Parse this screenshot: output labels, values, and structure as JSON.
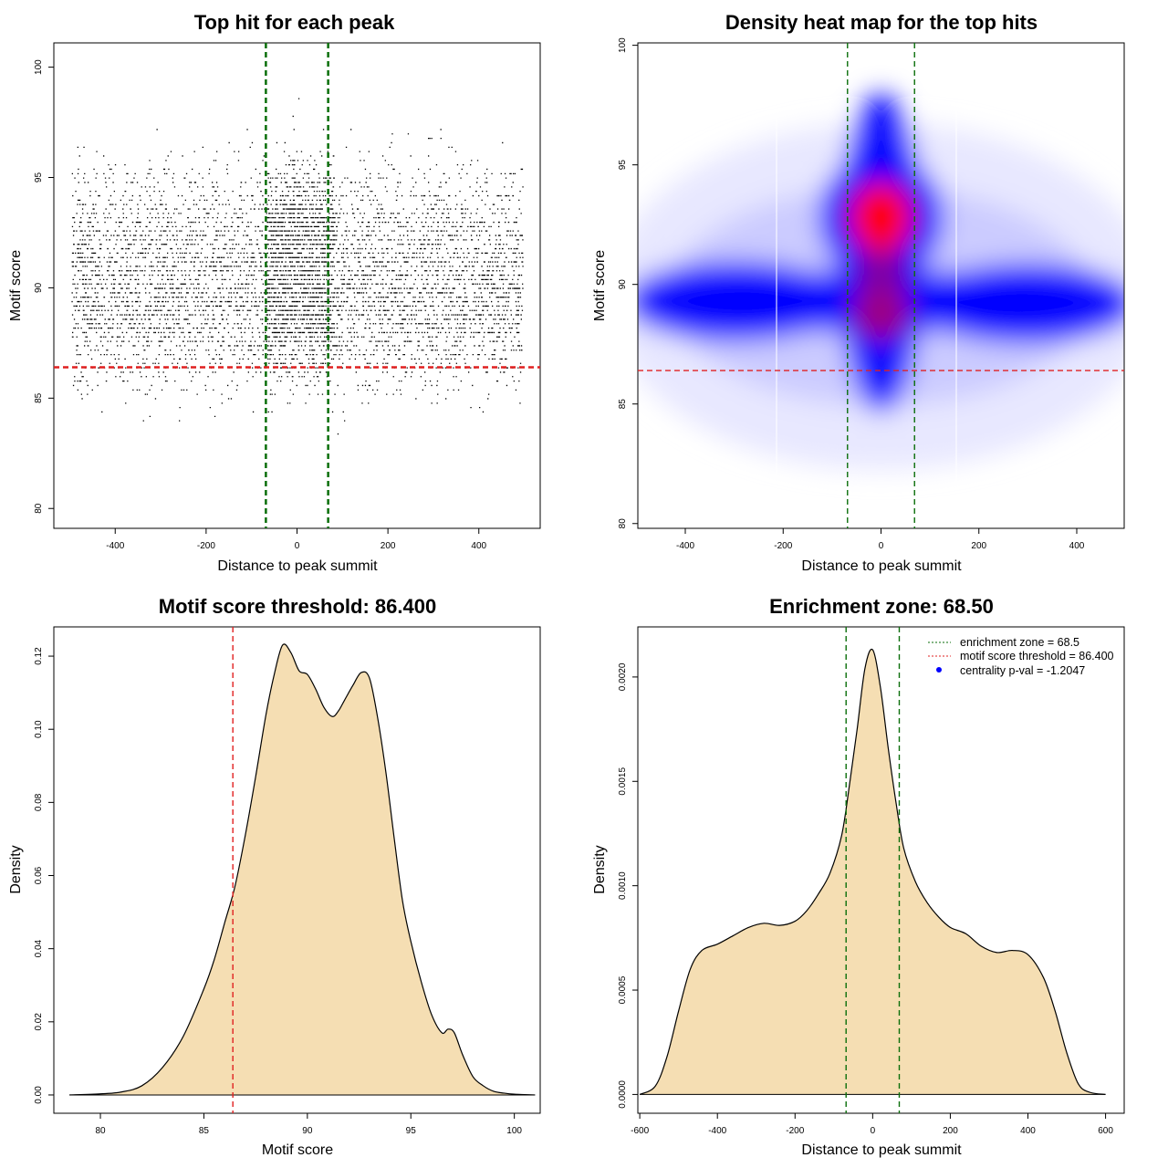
{
  "chart_data": [
    {
      "type": "scatter",
      "title": "Top hit for each peak",
      "xlabel": "Distance to peak summit",
      "ylabel": "Motif score",
      "xlim": [
        -535,
        535
      ],
      "ylim": [
        79.1,
        101.1
      ],
      "xticks": [
        "-400",
        "-200",
        "0",
        "200",
        "400"
      ],
      "yticks": [
        "80",
        "85",
        "90",
        "95",
        "100"
      ],
      "hlines": [
        {
          "y": 86.4,
          "color": "#e02020",
          "style": "dashed"
        }
      ],
      "vlines": [
        {
          "x": -68.5,
          "color": "#0a6e0a",
          "style": "dashed"
        },
        {
          "x": 68.5,
          "color": "#0a6e0a",
          "style": "dashed"
        }
      ],
      "point_cloud": {
        "n_points": 6500,
        "x_range": [
          -496,
          496
        ],
        "y_range": [
          79.7,
          100
        ],
        "central_band": [
          -68.5,
          68.5
        ],
        "score_modes": [
          88.8,
          92.8
        ],
        "point_color": "#000000"
      },
      "grid": false
    },
    {
      "type": "heatmap",
      "title": "Density heat map for the top hits",
      "xlabel": "Distance to peak summit",
      "ylabel": "Motif score",
      "xlim": [
        -497,
        497
      ],
      "ylim": [
        79.8,
        100.1
      ],
      "xticks": [
        "-400",
        "-200",
        "0",
        "200",
        "400"
      ],
      "yticks": [
        "80",
        "85",
        "90",
        "95",
        "100"
      ],
      "colors": {
        "low": "#ffffff",
        "mid": "#0000ff",
        "high": "#ff0000"
      },
      "hotspots": [
        {
          "x": 0,
          "y": 92.8,
          "intensity": "highest"
        },
        {
          "x": 0,
          "y": 88.8,
          "intensity": "high"
        },
        {
          "x": -300,
          "y": 89.2,
          "intensity": "medium"
        },
        {
          "x": 300,
          "y": 89.2,
          "intensity": "medium"
        }
      ],
      "hlines": [
        {
          "y": 86.4,
          "color": "#e02020",
          "style": "dashed"
        }
      ],
      "vlines": [
        {
          "x": -68.5,
          "color": "#0a6e0a",
          "style": "dashed"
        },
        {
          "x": 68.5,
          "color": "#0a6e0a",
          "style": "dashed"
        }
      ],
      "grid": false
    },
    {
      "type": "area",
      "title": "Motif score threshold: 86.400",
      "xlabel": "Motif score",
      "ylabel": "Density",
      "xlim": [
        77.75,
        101.25
      ],
      "ylim": [
        -0.005,
        0.128
      ],
      "xticks": [
        "80",
        "85",
        "90",
        "95",
        "100"
      ],
      "yticks": [
        "0.00",
        "0.02",
        "0.04",
        "0.06",
        "0.08",
        "0.10",
        "0.12"
      ],
      "fill": "#f5deb3",
      "x": [
        78.5,
        80,
        81,
        82,
        83,
        84,
        85,
        85.5,
        86,
        86.5,
        87,
        87.5,
        88,
        88.4,
        88.8,
        89.2,
        89.6,
        90,
        90.4,
        90.8,
        91.2,
        91.5,
        91.8,
        92.2,
        92.6,
        93,
        93.4,
        93.8,
        94.2,
        94.6,
        95,
        95.5,
        96,
        96.5,
        96.8,
        97.1,
        97.5,
        98,
        98.5,
        99,
        99.5,
        100,
        100.5,
        101
      ],
      "y": [
        0,
        0.0003,
        0.0008,
        0.0025,
        0.0075,
        0.016,
        0.029,
        0.037,
        0.047,
        0.057,
        0.071,
        0.087,
        0.104,
        0.115,
        0.123,
        0.121,
        0.116,
        0.115,
        0.111,
        0.106,
        0.1035,
        0.105,
        0.108,
        0.112,
        0.1155,
        0.114,
        0.103,
        0.088,
        0.07,
        0.053,
        0.042,
        0.031,
        0.022,
        0.017,
        0.018,
        0.017,
        0.011,
        0.005,
        0.0025,
        0.001,
        0.0005,
        0.0002,
        0.0001,
        0
      ],
      "vlines": [
        {
          "x": 86.4,
          "color": "#e02020",
          "style": "dashed"
        }
      ],
      "grid": false
    },
    {
      "type": "area",
      "title": "Enrichment zone: 68.50",
      "xlabel": "Distance to peak summit",
      "ylabel": "Density",
      "xlim": [
        -605,
        648
      ],
      "ylim": [
        -9e-05,
        0.00224
      ],
      "xticks": [
        "-600",
        "-400",
        "-200",
        "0",
        "200",
        "400",
        "600"
      ],
      "yticks": [
        "0.0000",
        "0.0005",
        "0.0010",
        "0.0015",
        "0.0020"
      ],
      "fill": "#f5deb3",
      "x": [
        -600,
        -560,
        -530,
        -500,
        -470,
        -440,
        -400,
        -360,
        -320,
        -280,
        -240,
        -200,
        -170,
        -140,
        -110,
        -80,
        -60,
        -40,
        -20,
        0,
        20,
        40,
        60,
        80,
        110,
        140,
        170,
        200,
        240,
        280,
        320,
        360,
        400,
        440,
        470,
        500,
        530,
        560,
        600
      ],
      "y": [
        0,
        4e-05,
        0.00018,
        0.0004,
        0.0006,
        0.00069,
        0.00072,
        0.00076,
        0.0008,
        0.00082,
        0.00081,
        0.00083,
        0.00088,
        0.00096,
        0.00106,
        0.00124,
        0.00148,
        0.00175,
        0.00204,
        0.00213,
        0.00195,
        0.00166,
        0.0014,
        0.00118,
        0.00102,
        0.00092,
        0.00085,
        0.0008,
        0.00077,
        0.00071,
        0.00068,
        0.00069,
        0.00067,
        0.00056,
        0.0004,
        0.0002,
        5e-05,
        1e-05,
        0
      ],
      "vlines": [
        {
          "x": -68.5,
          "color": "#0a6e0a",
          "style": "dashed"
        },
        {
          "x": 68.5,
          "color": "#0a6e0a",
          "style": "dashed"
        }
      ],
      "legend": {
        "position": "top-right",
        "entries": [
          {
            "label": "enrichment zone = 68.5",
            "color": "#0a6e0a",
            "symbol": "dotted-line"
          },
          {
            "label": "motif score threshold = 86.400",
            "color": "#e02020",
            "symbol": "dotted-line"
          },
          {
            "label": "centrality p-val = -1.2047",
            "color": "#0000ff",
            "symbol": "point"
          }
        ]
      },
      "grid": false
    }
  ]
}
